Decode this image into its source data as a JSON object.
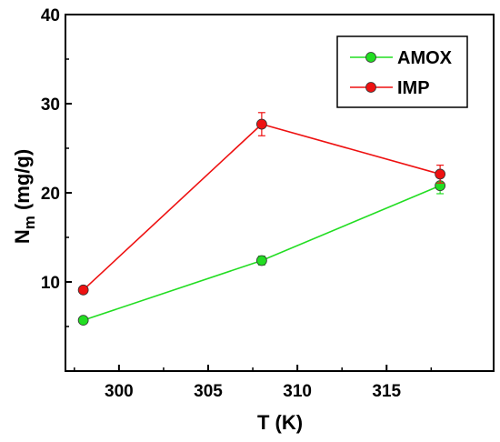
{
  "chart_data": {
    "type": "line",
    "xlabel": "T (K)",
    "ylabel": {
      "main": "N",
      "sub": "m",
      "rest": " (mg/g)"
    },
    "xlim": [
      297,
      321
    ],
    "ylim": [
      0,
      40
    ],
    "xticks": [
      "300",
      "305",
      "310",
      "315"
    ],
    "yticks": [
      "10",
      "20",
      "30",
      "40"
    ],
    "legend_position": "top-right",
    "series": [
      {
        "name": "AMOX",
        "color": "#22dd22",
        "x": [
          298,
          308,
          318
        ],
        "y": [
          5.7,
          12.4,
          20.8
        ],
        "err": [
          0.3,
          0.5,
          0.9
        ]
      },
      {
        "name": "IMP",
        "color": "#ee1111",
        "x": [
          298,
          308,
          318
        ],
        "y": [
          9.1,
          27.7,
          22.1
        ],
        "err": [
          0.3,
          1.3,
          1.0
        ]
      }
    ]
  }
}
